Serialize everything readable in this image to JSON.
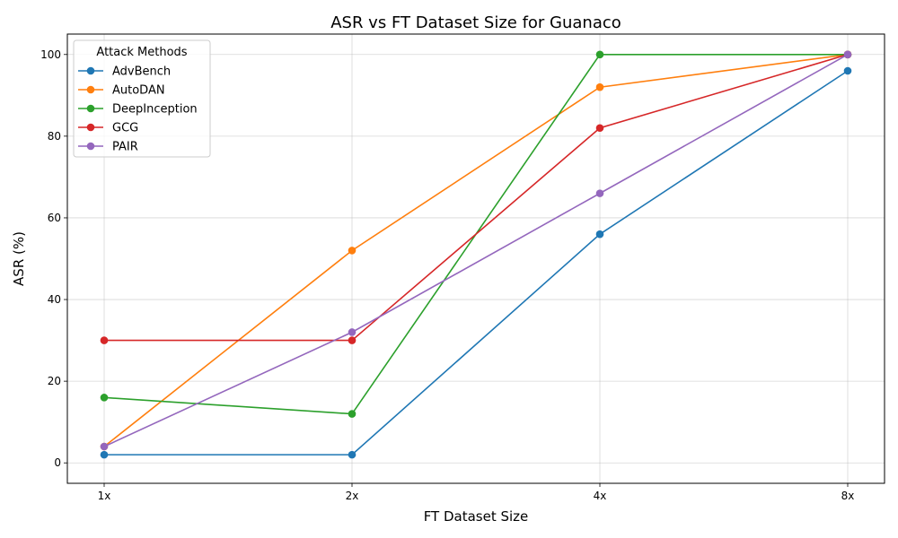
{
  "chart_data": {
    "type": "line",
    "title": "ASR vs FT Dataset Size for Guanaco",
    "xlabel": "FT Dataset Size",
    "ylabel": "ASR (%)",
    "categories": [
      "1x",
      "2x",
      "4x",
      "8x"
    ],
    "ylim": [
      -5,
      105
    ],
    "yticks": [
      0,
      20,
      40,
      60,
      80,
      100
    ],
    "grid": true,
    "legend": {
      "title": "Attack Methods",
      "position": "top-left"
    },
    "series": [
      {
        "name": "AdvBench",
        "color": "#1f77b4",
        "values": [
          2,
          2,
          56,
          96
        ]
      },
      {
        "name": "AutoDAN",
        "color": "#ff7f0e",
        "values": [
          4,
          52,
          92,
          100
        ]
      },
      {
        "name": "DeepInception",
        "color": "#2ca02c",
        "values": [
          16,
          12,
          100,
          100
        ]
      },
      {
        "name": "GCG",
        "color": "#d62728",
        "values": [
          30,
          30,
          82,
          100
        ]
      },
      {
        "name": "PAIR",
        "color": "#9467bd",
        "values": [
          4,
          32,
          66,
          100
        ]
      }
    ]
  }
}
